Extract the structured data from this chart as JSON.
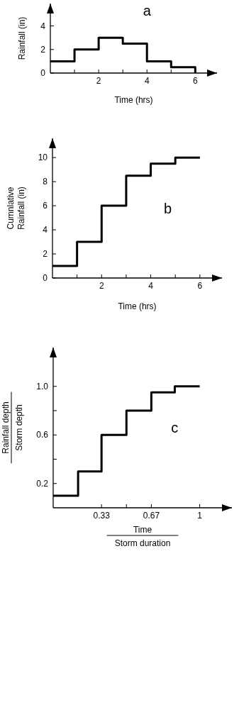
{
  "chart_data": [
    {
      "type": "step",
      "x": [
        0,
        1,
        2,
        3,
        4,
        5,
        6
      ],
      "values": [
        1,
        2,
        3,
        2.5,
        1,
        0.5,
        0
      ],
      "color": "#000000",
      "xlim": [
        0,
        6.9
      ],
      "ylim": [
        0,
        5.9
      ],
      "xticks": [
        {
          "value": 1,
          "label": null
        },
        2,
        {
          "value": 3,
          "label": null
        },
        4,
        {
          "value": 5,
          "label": null
        },
        6
      ],
      "yticks": [
        0,
        2,
        4
      ],
      "xlabel": "Time (hrs)",
      "ylabel": "Rainfall (in)",
      "annotations": [
        "a"
      ]
    },
    {
      "type": "step",
      "x": [
        0,
        1,
        2,
        3,
        4,
        5,
        6
      ],
      "values": [
        1,
        3,
        6,
        8.5,
        9.5,
        10,
        10
      ],
      "color": "#000000",
      "xlim": [
        0,
        6.9
      ],
      "ylim": [
        0,
        11.6
      ],
      "xticks": [
        {
          "value": 1,
          "label": null
        },
        2,
        {
          "value": 3,
          "label": null
        },
        4,
        {
          "value": 5,
          "label": null
        },
        6
      ],
      "yticks": [
        0,
        2,
        4,
        6,
        8,
        10
      ],
      "xlabel": "Time (hrs)",
      "ylabel": "Cumnlative\nRainfall (in)",
      "annotations": [
        "b"
      ]
    },
    {
      "type": "step",
      "x": [
        0,
        0.17,
        0.33,
        0.5,
        0.67,
        0.83,
        1
      ],
      "values": [
        0.1,
        0.3,
        0.6,
        0.8,
        0.95,
        1.0,
        1.0
      ],
      "color": "#000000",
      "xlim": [
        0,
        1.22
      ],
      "ylim": [
        0,
        1.32
      ],
      "xticks": [
        0.33,
        {
          "value": 0.5,
          "label": null
        },
        0.67,
        1
      ],
      "yticks": [
        0.2,
        {
          "value": 0.4,
          "label": null
        },
        0.6,
        {
          "value": 0.8,
          "label": null
        },
        {
          "value": 1.0,
          "label": "1.0"
        }
      ],
      "xlabel": "Time\nStorm duration",
      "ylabel": "Rainfall depth\nStorm depth",
      "annotations": [
        "c"
      ]
    }
  ]
}
